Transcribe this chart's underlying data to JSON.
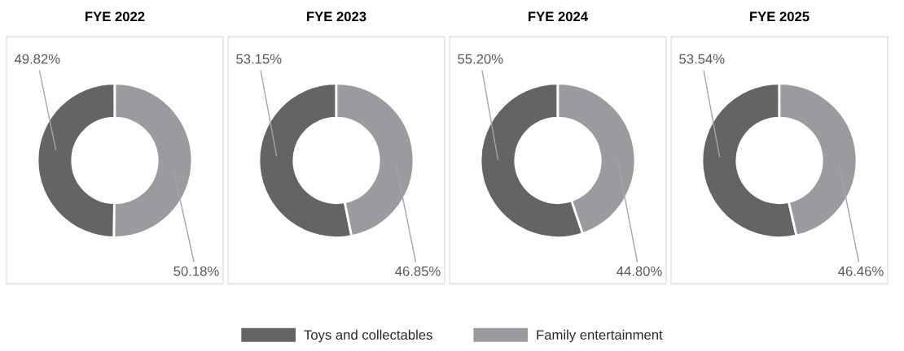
{
  "chart_data": [
    {
      "type": "donut",
      "title": "FYE 2022",
      "categories": [
        "Toys and collectables",
        "Family entertainment"
      ],
      "values": [
        49.82,
        50.18
      ],
      "colors": [
        "#646464",
        "#9a9b9f"
      ],
      "value_labels": [
        "49.82%",
        "50.18%"
      ],
      "legend": "bottom"
    },
    {
      "type": "donut",
      "title": "FYE 2023",
      "categories": [
        null,
        null
      ],
      "values": [
        53.15,
        46.85
      ],
      "colors": [
        "#646464",
        "#9a9b9f"
      ],
      "value_labels": [
        "53.15%",
        "46.85%"
      ]
    },
    {
      "type": "donut",
      "title": "FYE 2024",
      "categories": [
        null,
        null
      ],
      "values": [
        55.2,
        44.8
      ],
      "colors": [
        "#646464",
        "#9a9b9f"
      ],
      "value_labels": [
        "55.20%",
        "44.80%"
      ]
    },
    {
      "type": "donut",
      "title": "FYE 2025",
      "categories": [
        null,
        null
      ],
      "values": [
        53.54,
        46.46
      ],
      "colors": [
        "#646464",
        "#9a9b9f"
      ],
      "value_labels": [
        "53.54%",
        "46.46%"
      ]
    }
  ]
}
